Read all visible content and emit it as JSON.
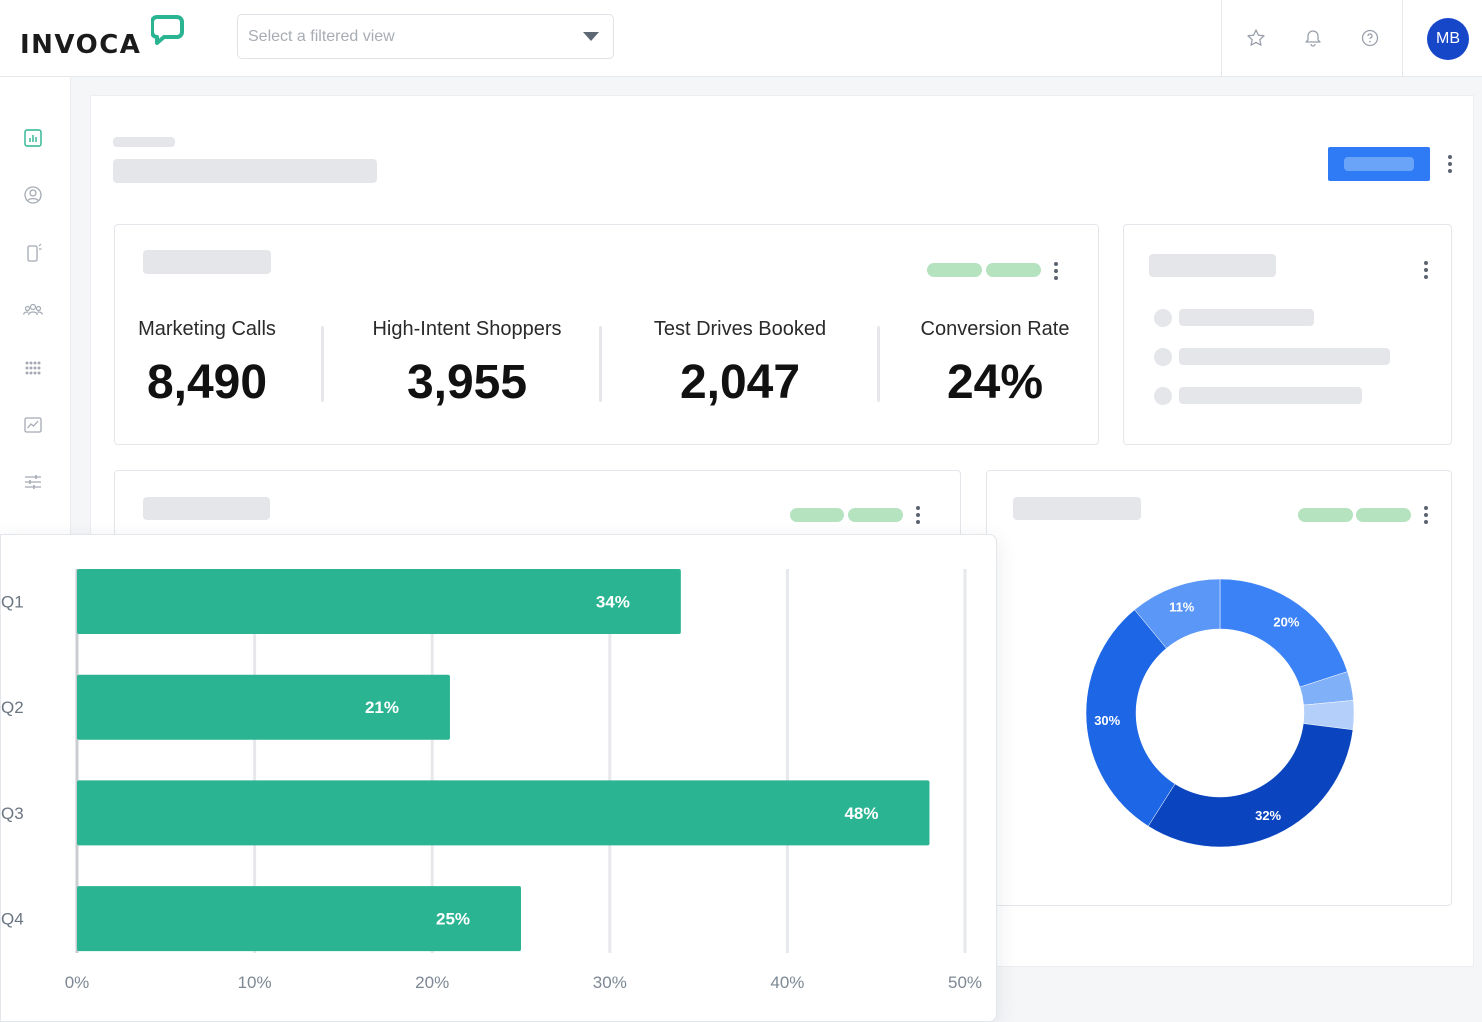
{
  "app": {
    "logo_text": "INVOCA",
    "view_select": {
      "placeholder": "Select a filtered view"
    },
    "user_initials": "MB"
  },
  "icons": {
    "topbar": [
      "star-icon",
      "bell-icon",
      "help-icon"
    ],
    "sidebar": [
      "reports-icon",
      "profile-icon",
      "mobile-icon",
      "audience-icon",
      "apps-grid-icon",
      "analytics-icon",
      "settings-sliders-icon"
    ]
  },
  "colors": {
    "brand_green": "#2bb491",
    "primary_blue": "#2f7bf5",
    "avatar_blue": "#1747c9",
    "skeleton_grey": "#e4e6e9",
    "skeleton_green": "#b5e3bf"
  },
  "metrics": [
    {
      "label": "Marketing Calls",
      "value": "8,490"
    },
    {
      "label": "High-Intent Shoppers",
      "value": "3,955"
    },
    {
      "label": "Test Drives Booked",
      "value": "2,047"
    },
    {
      "label": "Conversion Rate",
      "value": "24%"
    }
  ],
  "chart_data": [
    {
      "type": "bar",
      "orientation": "horizontal",
      "categories": [
        "Q1",
        "Q2",
        "Q3",
        "Q4"
      ],
      "values": [
        34,
        21,
        48,
        25
      ],
      "data_labels": [
        "34%",
        "21%",
        "48%",
        "25%"
      ],
      "x_ticks": [
        "0%",
        "10%",
        "20%",
        "30%",
        "40%",
        "50%"
      ],
      "xlim": [
        0,
        50
      ],
      "grid": true,
      "color": "#2bb491"
    },
    {
      "type": "pie",
      "donut": true,
      "slices": [
        {
          "label": "20%",
          "value": 20,
          "color": "#3b82f7"
        },
        {
          "label": "",
          "value": 3.5,
          "color": "#7fb0f8"
        },
        {
          "label": "",
          "value": 3.5,
          "color": "#b3cffa"
        },
        {
          "label": "32%",
          "value": 32,
          "color": "#0a45bf"
        },
        {
          "label": "30%",
          "value": 30,
          "color": "#1d66e5"
        },
        {
          "label": "11%",
          "value": 11,
          "color": "#5b97f6"
        }
      ]
    }
  ]
}
